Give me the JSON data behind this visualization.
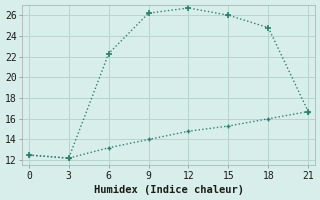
{
  "line1_x": [
    0,
    3,
    6,
    9,
    12,
    15,
    18,
    21
  ],
  "line1_y": [
    12.5,
    12.2,
    22.3,
    26.2,
    26.7,
    26.0,
    24.8,
    16.7
  ],
  "line2_x": [
    0,
    3,
    6,
    9,
    12,
    15,
    18,
    21
  ],
  "line2_y": [
    12.5,
    12.2,
    13.2,
    14.0,
    14.8,
    15.3,
    16.0,
    16.7
  ],
  "color": "#2a7f6f",
  "bg_color": "#d8eeea",
  "grid_color": "#b8d4cf",
  "xlabel": "Humidex (Indice chaleur)",
  "xlim": [
    -0.5,
    21.5
  ],
  "ylim": [
    11.5,
    27.0
  ],
  "xticks": [
    0,
    3,
    6,
    9,
    12,
    15,
    18,
    21
  ],
  "yticks": [
    12,
    14,
    16,
    18,
    20,
    22,
    24,
    26
  ],
  "font_family": "monospace",
  "xlabel_fontsize": 7.5,
  "tick_fontsize": 7.0
}
